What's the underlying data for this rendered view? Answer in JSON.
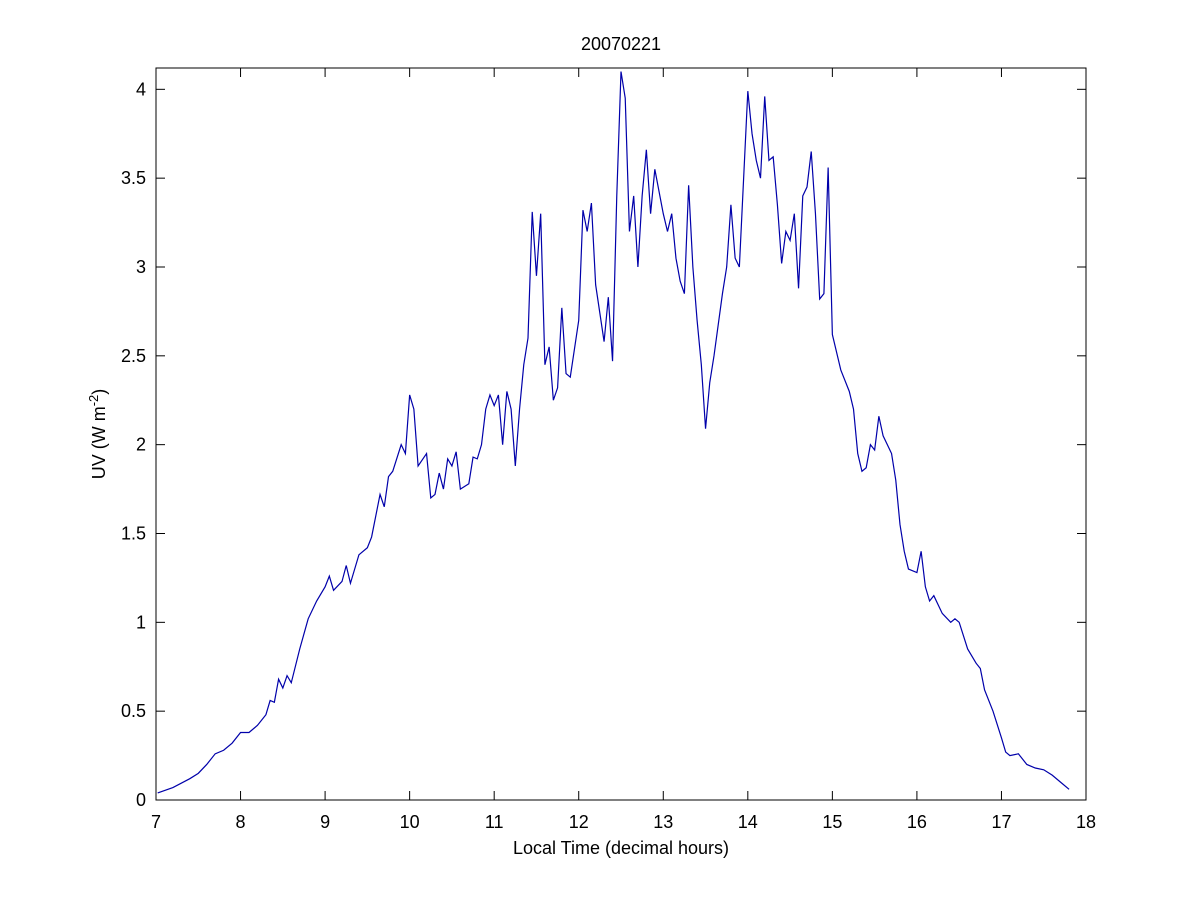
{
  "chart_data": {
    "type": "line",
    "title": "20070221",
    "x_label": "Local Time (decimal hours)",
    "y_label": {
      "text": "UV (W m",
      "superscript": "-2",
      "suffix": ")"
    },
    "xlim": [
      7,
      18
    ],
    "xticks": [
      7,
      8,
      9,
      10,
      11,
      12,
      13,
      14,
      15,
      16,
      17,
      18
    ],
    "ylim": [
      0,
      4.12
    ],
    "yticks": [
      0,
      0.5,
      1,
      1.5,
      2,
      2.5,
      3,
      3.5,
      4
    ],
    "grid": false,
    "series": [
      {
        "color": "#0000aa",
        "x": [
          7.02,
          7.2,
          7.4,
          7.5,
          7.6,
          7.7,
          7.8,
          7.9,
          8.0,
          8.1,
          8.2,
          8.3,
          8.35,
          8.4,
          8.45,
          8.5,
          8.55,
          8.6,
          8.7,
          8.8,
          8.9,
          9.0,
          9.05,
          9.1,
          9.2,
          9.25,
          9.3,
          9.4,
          9.5,
          9.55,
          9.6,
          9.65,
          9.7,
          9.75,
          9.8,
          9.9,
          9.95,
          10.0,
          10.05,
          10.1,
          10.2,
          10.25,
          10.3,
          10.35,
          10.4,
          10.45,
          10.5,
          10.55,
          10.6,
          10.7,
          10.75,
          10.8,
          10.85,
          10.9,
          10.95,
          11.0,
          11.05,
          11.1,
          11.15,
          11.2,
          11.25,
          11.3,
          11.35,
          11.4,
          11.45,
          11.5,
          11.55,
          11.6,
          11.65,
          11.7,
          11.75,
          11.8,
          11.85,
          11.9,
          12.0,
          12.05,
          12.1,
          12.15,
          12.2,
          12.3,
          12.35,
          12.4,
          12.45,
          12.5,
          12.55,
          12.6,
          12.65,
          12.7,
          12.75,
          12.8,
          12.85,
          12.9,
          13.0,
          13.05,
          13.1,
          13.15,
          13.2,
          13.25,
          13.3,
          13.35,
          13.4,
          13.45,
          13.5,
          13.55,
          13.6,
          13.7,
          13.75,
          13.8,
          13.85,
          13.9,
          14.0,
          14.05,
          14.1,
          14.15,
          14.2,
          14.25,
          14.3,
          14.35,
          14.4,
          14.45,
          14.5,
          14.55,
          14.6,
          14.65,
          14.7,
          14.75,
          14.8,
          14.85,
          14.9,
          14.95,
          15.0,
          15.1,
          15.2,
          15.25,
          15.3,
          15.35,
          15.4,
          15.45,
          15.5,
          15.55,
          15.6,
          15.7,
          15.75,
          15.8,
          15.85,
          15.9,
          16.0,
          16.05,
          16.1,
          16.15,
          16.2,
          16.3,
          16.4,
          16.45,
          16.5,
          16.6,
          16.7,
          16.75,
          16.8,
          16.9,
          17.0,
          17.05,
          17.1,
          17.2,
          17.3,
          17.4,
          17.5,
          17.6,
          17.7,
          17.8
        ],
        "values": [
          0.04,
          0.07,
          0.12,
          0.15,
          0.2,
          0.26,
          0.28,
          0.32,
          0.38,
          0.38,
          0.42,
          0.48,
          0.56,
          0.55,
          0.68,
          0.63,
          0.7,
          0.66,
          0.85,
          1.02,
          1.12,
          1.2,
          1.26,
          1.18,
          1.23,
          1.32,
          1.22,
          1.38,
          1.42,
          1.48,
          1.6,
          1.72,
          1.65,
          1.82,
          1.85,
          2.0,
          1.95,
          2.28,
          2.2,
          1.88,
          1.95,
          1.7,
          1.72,
          1.84,
          1.75,
          1.92,
          1.88,
          1.96,
          1.75,
          1.78,
          1.93,
          1.92,
          2.0,
          2.2,
          2.28,
          2.22,
          2.28,
          2.0,
          2.3,
          2.2,
          1.88,
          2.2,
          2.45,
          2.6,
          3.31,
          2.95,
          3.3,
          2.45,
          2.55,
          2.25,
          2.32,
          2.77,
          2.4,
          2.38,
          2.7,
          3.32,
          3.2,
          3.36,
          2.9,
          2.58,
          2.83,
          2.47,
          3.4,
          4.1,
          3.95,
          3.2,
          3.4,
          3.0,
          3.4,
          3.66,
          3.3,
          3.55,
          3.3,
          3.2,
          3.3,
          3.05,
          2.92,
          2.85,
          3.46,
          3.0,
          2.7,
          2.45,
          2.09,
          2.35,
          2.5,
          2.85,
          3.0,
          3.35,
          3.05,
          3.0,
          3.99,
          3.75,
          3.6,
          3.5,
          3.96,
          3.6,
          3.62,
          3.35,
          3.02,
          3.2,
          3.15,
          3.3,
          2.88,
          3.4,
          3.45,
          3.65,
          3.3,
          2.82,
          2.85,
          3.56,
          2.62,
          2.42,
          2.3,
          2.2,
          1.95,
          1.85,
          1.87,
          2.0,
          1.97,
          2.16,
          2.05,
          1.95,
          1.8,
          1.55,
          1.4,
          1.3,
          1.28,
          1.4,
          1.2,
          1.12,
          1.15,
          1.05,
          1.0,
          1.02,
          1.0,
          0.85,
          0.77,
          0.74,
          0.62,
          0.5,
          0.35,
          0.27,
          0.25,
          0.26,
          0.2,
          0.18,
          0.17,
          0.14,
          0.1,
          0.06
        ]
      }
    ]
  }
}
